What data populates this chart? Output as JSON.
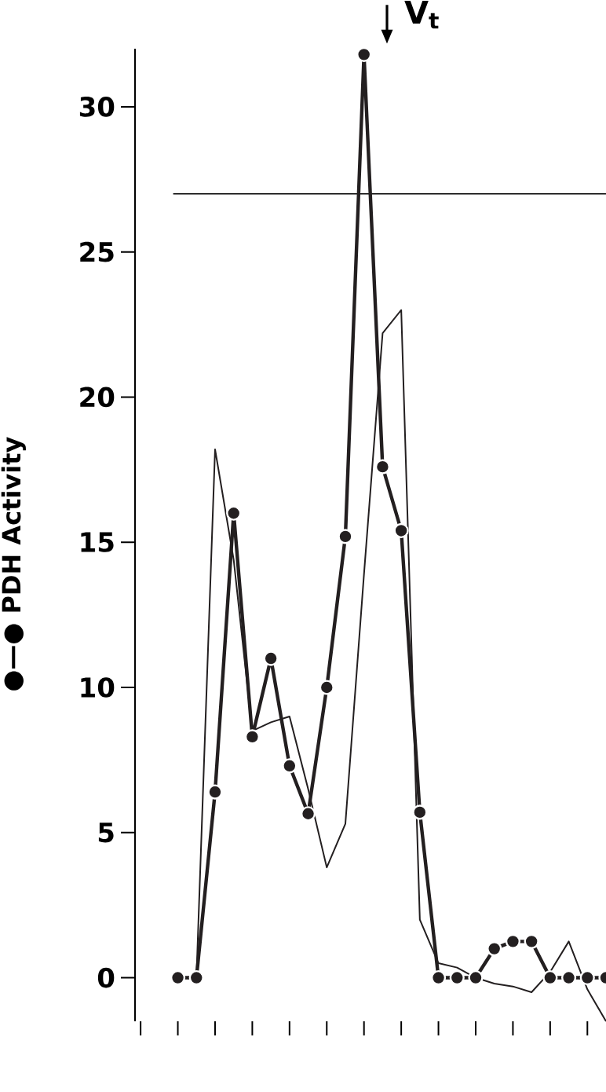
{
  "chart_data": {
    "type": "line",
    "ylabel": "●—● PDH Activity",
    "categories": [
      null,
      null,
      null,
      null,
      null,
      null,
      null,
      null,
      null,
      null,
      null,
      null,
      null,
      null,
      null,
      null,
      null,
      null,
      null,
      null,
      null,
      null,
      null,
      null
    ],
    "ylim": [
      -1.5,
      32
    ],
    "yticks": [
      0,
      5,
      10,
      15,
      20,
      25,
      30
    ],
    "grid": false,
    "legend": false,
    "line_style": "solid",
    "series": [
      {
        "color": "#231f20",
        "marker": "circle",
        "values": [
          0,
          0,
          6.4,
          16.0,
          8.3,
          11.0,
          7.3,
          5.65,
          10.0,
          15.2,
          31.8,
          17.6,
          15.4,
          5.7,
          0,
          0,
          0,
          1.0,
          1.25,
          1.25,
          0,
          0,
          0,
          0
        ]
      },
      {
        "color": "#231f20",
        "marker": "none",
        "values": [
          null,
          0,
          18.2,
          14.4,
          8.5,
          8.8,
          9.0,
          6.5,
          3.8,
          5.3,
          13.9,
          22.2,
          23.0,
          2.0,
          0.5,
          0.35,
          0,
          -0.2,
          -0.3,
          -0.5,
          0.2,
          1.25,
          -0.4,
          -1.5
        ]
      }
    ],
    "ref_lines": [
      {
        "axis": "y",
        "value": 27
      }
    ],
    "annotations": [
      "V$_{t}$"
    ]
  }
}
